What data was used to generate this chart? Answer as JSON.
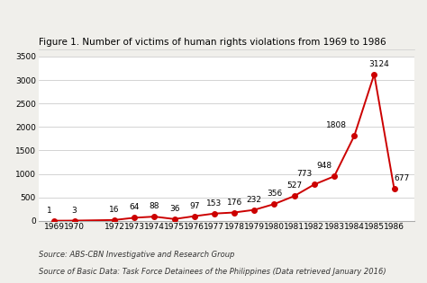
{
  "title": "Figure 1. Number of victims of human rights violations from 1969 to 1986",
  "years": [
    1969,
    1970,
    1972,
    1973,
    1974,
    1975,
    1976,
    1977,
    1978,
    1979,
    1980,
    1981,
    1982,
    1983,
    1984,
    1985,
    1986
  ],
  "values": [
    1,
    3,
    16,
    64,
    88,
    36,
    97,
    153,
    176,
    232,
    356,
    527,
    773,
    948,
    1808,
    3124,
    677
  ],
  "line_color": "#cc0000",
  "marker_color": "#cc0000",
  "bg_color": "#f0efeb",
  "plot_bg_color": "#ffffff",
  "ylim": [
    0,
    3500
  ],
  "yticks": [
    0,
    500,
    1000,
    1500,
    2000,
    2500,
    3000,
    3500
  ],
  "source1": "Source: ABS-CBN Investigative and Research Group",
  "source2": "Source of Basic Data: Task Force Detainees of the Philippines (Data retrieved January 2016)",
  "title_fontsize": 7.5,
  "label_fontsize": 6.5,
  "tick_fontsize": 6.5,
  "source_fontsize": 6.0
}
